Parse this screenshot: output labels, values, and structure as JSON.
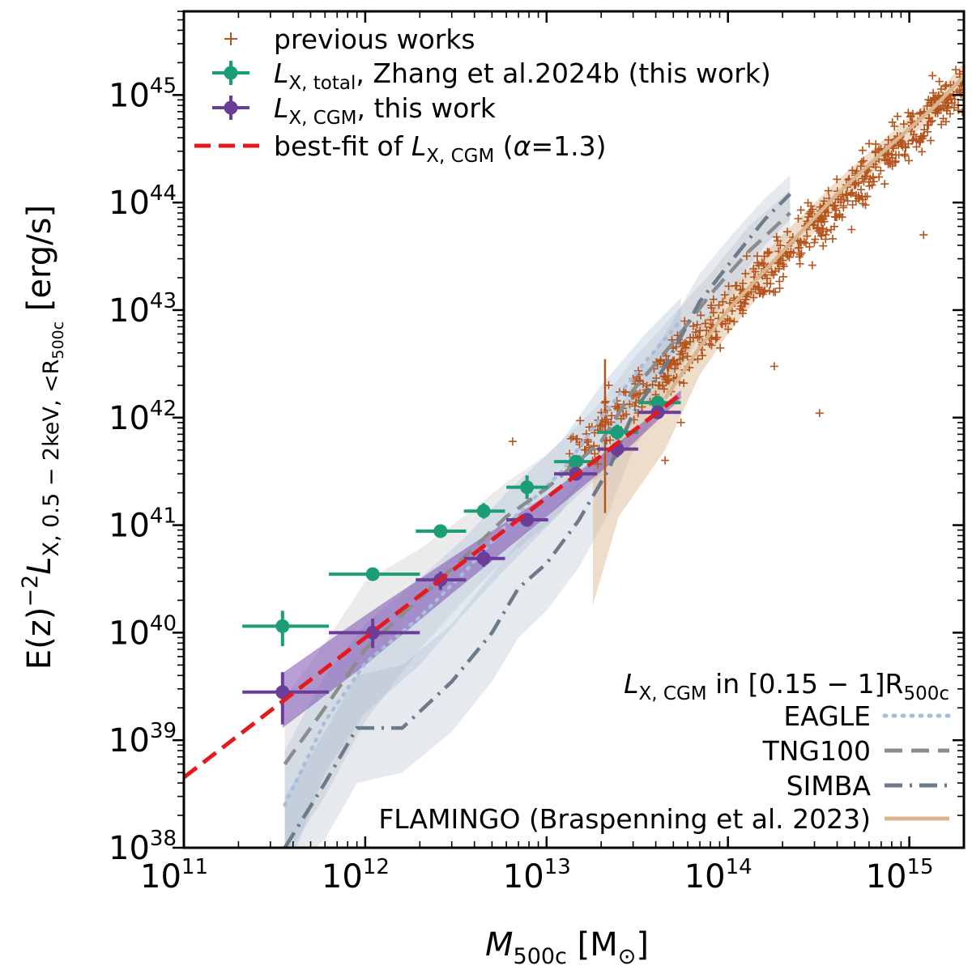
{
  "chart_data": {
    "type": "scatter",
    "x_scale": "log",
    "y_scale": "log",
    "xlim": [
      100000000000.0,
      2000000000000000.0
    ],
    "ylim": [
      1e+38,
      6e+45
    ],
    "xlabel": "M_500c [M_⊙]",
    "ylabel": "E(z)^-2 L_X, 0.5-2keV, <R_500c [erg/s]",
    "x_ticks": [
      {
        "base": "10",
        "exp": "11",
        "value": 100000000000.0
      },
      {
        "base": "10",
        "exp": "12",
        "value": 1000000000000.0
      },
      {
        "base": "10",
        "exp": "13",
        "value": 10000000000000.0
      },
      {
        "base": "10",
        "exp": "14",
        "value": 100000000000000.0
      },
      {
        "base": "10",
        "exp": "15",
        "value": 1000000000000000.0
      }
    ],
    "y_ticks": [
      {
        "base": "10",
        "exp": "38",
        "value": 1e+38
      },
      {
        "base": "10",
        "exp": "39",
        "value": 1e+39
      },
      {
        "base": "10",
        "exp": "40",
        "value": 1e+40
      },
      {
        "base": "10",
        "exp": "41",
        "value": 1e+41
      },
      {
        "base": "10",
        "exp": "42",
        "value": 1e+42
      },
      {
        "base": "10",
        "exp": "43",
        "value": 1e+43
      },
      {
        "base": "10",
        "exp": "44",
        "value": 1e+44
      },
      {
        "base": "10",
        "exp": "45",
        "value": 1e+45
      }
    ],
    "legend_top_left": [
      "previous works",
      "L_X,total, Zhang et al.2024b (this work)",
      "L_X,CGM, this work",
      "best-fit of L_X,CGM (α=1.3)"
    ],
    "legend_bottom_right": [
      "EAGLE",
      "TNG100",
      "SIMBA",
      "FLAMINGO (Braspenning et al. 2023)"
    ],
    "legend_bottom_right_title": "L_X,CGM in [0.15 − 1]R_500c",
    "series": [
      {
        "name": "L_X,total, Zhang et al.2024b (this work)",
        "color": "#1b9e77",
        "points": [
          {
            "x": 350000000000.0,
            "y": 1.15e+40,
            "xlo": 210000000000.0,
            "xhi": 630000000000.0,
            "ylo": 7.5e+39,
            "yhi": 1.6e+40
          },
          {
            "x": 1100000000000.0,
            "y": 3.5e+40,
            "xlo": 630000000000.0,
            "xhi": 2000000000000.0,
            "ylo": 3.1e+40,
            "yhi": 3.9e+40
          },
          {
            "x": 2600000000000.0,
            "y": 8.8e+40,
            "xlo": 1900000000000.0,
            "xhi": 3600000000000.0,
            "ylo": 8e+40,
            "yhi": 9.6e+40
          },
          {
            "x": 4500000000000.0,
            "y": 1.35e+41,
            "xlo": 3500000000000.0,
            "xhi": 5900000000000.0,
            "ylo": 1.15e+41,
            "yhi": 1.6e+41
          },
          {
            "x": 7800000000000.0,
            "y": 2.25e+41,
            "xlo": 6000000000000.0,
            "xhi": 10200000000000.0,
            "ylo": 1.75e+41,
            "yhi": 2.9e+41
          },
          {
            "x": 14500000000000.0,
            "y": 3.9e+41,
            "xlo": 11000000000000.0,
            "xhi": 19000000000000.0,
            "ylo": 3.6e+41,
            "yhi": 4.2e+41
          },
          {
            "x": 24500000000000.0,
            "y": 7.3e+41,
            "xlo": 19000000000000.0,
            "xhi": 32000000000000.0,
            "ylo": 6.2e+41,
            "yhi": 8.6e+41
          },
          {
            "x": 41000000000000.0,
            "y": 1.38e+42,
            "xlo": 32000000000000.0,
            "xhi": 55000000000000.0,
            "ylo": 1.25e+42,
            "yhi": 1.5e+42
          }
        ]
      },
      {
        "name": "L_X,CGM, this work",
        "color": "#6a3d9a",
        "points": [
          {
            "x": 350000000000.0,
            "y": 2.8e+39,
            "xlo": 210000000000.0,
            "xhi": 630000000000.0,
            "ylo": 1.4e+39,
            "yhi": 4.3e+39
          },
          {
            "x": 1100000000000.0,
            "y": 1e+40,
            "xlo": 630000000000.0,
            "xhi": 2000000000000.0,
            "ylo": 7.2e+39,
            "yhi": 1.35e+40
          },
          {
            "x": 2600000000000.0,
            "y": 3.1e+40,
            "xlo": 1900000000000.0,
            "xhi": 3600000000000.0,
            "ylo": 2.5e+40,
            "yhi": 3.7e+40
          },
          {
            "x": 4500000000000.0,
            "y": 4.9e+40,
            "xlo": 3500000000000.0,
            "xhi": 5900000000000.0,
            "ylo": 4.1e+40,
            "yhi": 5.9e+40
          },
          {
            "x": 7800000000000.0,
            "y": 1.12e+41,
            "xlo": 6000000000000.0,
            "xhi": 10200000000000.0,
            "ylo": 9.8e+40,
            "yhi": 1.28e+41
          },
          {
            "x": 14500000000000.0,
            "y": 3e+41,
            "xlo": 11000000000000.0,
            "xhi": 19000000000000.0,
            "ylo": 2.75e+41,
            "yhi": 3.25e+41
          },
          {
            "x": 24500000000000.0,
            "y": 5.1e+41,
            "xlo": 19000000000000.0,
            "xhi": 32000000000000.0,
            "ylo": 4.3e+41,
            "yhi": 6e+41
          },
          {
            "x": 41000000000000.0,
            "y": 1.12e+42,
            "xlo": 32000000000000.0,
            "xhi": 55000000000000.0,
            "ylo": 1e+42,
            "yhi": 1.25e+42
          }
        ]
      },
      {
        "name": "best-fit of L_X,CGM (α=1.3)",
        "color": "#e41a1c",
        "line": [
          [
            100000000000.0,
            4.5e+38
          ],
          [
            55000000000000.0,
            1.65e+42
          ]
        ],
        "band": [
          [
            350000000000.0,
            1.3e+39,
            4.2e+39
          ],
          [
            1000000000000.0,
            5e+39,
            1.45e+40
          ],
          [
            3000000000000.0,
            2.3e+40,
            5e+40
          ],
          [
            10000000000000.0,
            1.2e+41,
            1.9e+41
          ],
          [
            25000000000000.0,
            4.3e+41,
            5.9e+41
          ],
          [
            55000000000000.0,
            1.5e+42,
            1.8e+42
          ]
        ]
      },
      {
        "name": "EAGLE",
        "color": "#a6bddb",
        "line": [
          [
            360000000000.0,
            2.5e+38
          ],
          [
            600000000000.0,
            1.5e+39
          ],
          [
            1000000000000.0,
            5.2e+39
          ],
          [
            2000000000000.0,
            1.4e+40
          ],
          [
            3500000000000.0,
            3.6e+40
          ],
          [
            6000000000000.0,
            1e+41
          ],
          [
            12000000000000.0,
            3.1e+41
          ],
          [
            20000000000000.0,
            1e+42
          ],
          [
            35000000000000.0,
            3.3e+42
          ],
          [
            55000000000000.0,
            8e+42
          ]
        ],
        "band": [
          [
            360000000000.0,
            5e+37,
            8e+38
          ],
          [
            600000000000.0,
            5e+38,
            4e+39
          ],
          [
            1000000000000.0,
            1.8e+39,
            1.2e+40
          ],
          [
            2000000000000.0,
            5e+39,
            3.2e+40
          ],
          [
            3500000000000.0,
            1.5e+40,
            7.5e+40
          ],
          [
            6000000000000.0,
            4e+40,
            2e+41
          ],
          [
            12000000000000.0,
            1.3e+41,
            6e+41
          ],
          [
            20000000000000.0,
            5e+41,
            2e+42
          ],
          [
            35000000000000.0,
            1.8e+42,
            6e+42
          ],
          [
            55000000000000.0,
            5e+42,
            1.3e+43
          ]
        ]
      },
      {
        "name": "TNG100",
        "color": "#8c8c8c",
        "line": [
          [
            360000000000.0,
            6e+38
          ],
          [
            600000000000.0,
            2e+39
          ],
          [
            1000000000000.0,
            7e+39
          ],
          [
            2000000000000.0,
            2.1e+40
          ],
          [
            3500000000000.0,
            5e+40
          ],
          [
            6000000000000.0,
            1.2e+41
          ],
          [
            10000000000000.0,
            2.2e+41
          ],
          [
            20000000000000.0,
            6e+41
          ],
          [
            30000000000000.0,
            1.8e+42
          ],
          [
            50000000000000.0,
            5e+42
          ],
          [
            80000000000000.0,
            1.4e+43
          ],
          [
            130000000000000.0,
            3.5e+43
          ],
          [
            220000000000000.0,
            8e+43
          ]
        ],
        "band": [
          [
            360000000000.0,
            8e+37,
            2.5e+39
          ],
          [
            600000000000.0,
            3e+38,
            8e+39
          ],
          [
            1000000000000.0,
            1.5e+39,
            3e+40
          ],
          [
            2000000000000.0,
            7e+39,
            6e+40
          ],
          [
            3500000000000.0,
            2e+40,
            1.2e+41
          ],
          [
            6000000000000.0,
            5e+40,
            2.5e+41
          ],
          [
            10000000000000.0,
            1e+41,
            4.5e+41
          ],
          [
            20000000000000.0,
            3e+41,
            1.4e+42
          ],
          [
            30000000000000.0,
            9e+41,
            3.5e+42
          ],
          [
            50000000000000.0,
            2.5e+42,
            9e+42
          ],
          [
            80000000000000.0,
            8e+42,
            2.2e+43
          ],
          [
            130000000000000.0,
            2e+43,
            6e+43
          ],
          [
            220000000000000.0,
            5e+43,
            1.3e+44
          ]
        ]
      },
      {
        "name": "SIMBA",
        "color": "#6b7b8c",
        "line": [
          [
            360000000000.0,
            1e+38
          ],
          [
            600000000000.0,
            4e+38
          ],
          [
            900000000000.0,
            1.3e+39
          ],
          [
            1600000000000.0,
            1.3e+39
          ],
          [
            3000000000000.0,
            3.5e+39
          ],
          [
            5000000000000.0,
            1e+40
          ],
          [
            7000000000000.0,
            2.6e+40
          ],
          [
            10000000000000.0,
            4.4e+40
          ],
          [
            15000000000000.0,
            1.1e+41
          ],
          [
            22000000000000.0,
            3.3e+41
          ],
          [
            30000000000000.0,
            1.1e+42
          ],
          [
            45000000000000.0,
            3e+42
          ],
          [
            70000000000000.0,
            1.2e+43
          ],
          [
            110000000000000.0,
            3.2e+43
          ],
          [
            160000000000000.0,
            7e+43
          ],
          [
            220000000000000.0,
            1.2e+44
          ]
        ],
        "band": [
          [
            360000000000.0,
            5e+37,
            3e+38
          ],
          [
            600000000000.0,
            1.2e+38,
            1.2e+39
          ],
          [
            900000000000.0,
            4e+38,
            4e+39
          ],
          [
            1600000000000.0,
            5e+38,
            5e+39
          ],
          [
            3000000000000.0,
            1.2e+39,
            1.2e+40
          ],
          [
            5000000000000.0,
            3.5e+39,
            3.5e+40
          ],
          [
            7000000000000.0,
            9e+39,
            7e+40
          ],
          [
            10000000000000.0,
            1.6e+40,
            1.2e+41
          ],
          [
            15000000000000.0,
            4e+40,
            2.5e+41
          ],
          [
            22000000000000.0,
            1.3e+41,
            7e+41
          ],
          [
            30000000000000.0,
            5e+41,
            2.2e+42
          ],
          [
            45000000000000.0,
            1.4e+42,
            6e+42
          ],
          [
            70000000000000.0,
            6e+42,
            2.2e+43
          ],
          [
            110000000000000.0,
            1.7e+43,
            5.5e+43
          ],
          [
            160000000000000.0,
            4e+43,
            1.1e+44
          ],
          [
            220000000000000.0,
            7e+43,
            1.8e+44
          ]
        ]
      },
      {
        "name": "FLAMINGO (Braspenning et al. 2023)",
        "color": "#d9b48c",
        "line": [
          [
            45000000000000.0,
            1.5e+42
          ],
          [
            70000000000000.0,
            4.5e+42
          ],
          [
            100000000000000.0,
            1e+43
          ],
          [
            200000000000000.0,
            3.5e+43
          ],
          [
            400000000000000.0,
            1.2e+44
          ],
          [
            800000000000000.0,
            3.5e+44
          ],
          [
            1400000000000000.0,
            8e+44
          ],
          [
            2000000000000000.0,
            1.5e+45
          ]
        ],
        "band": [
          [
            18000000000000.0,
            1.8e+40,
            3.5e+41
          ],
          [
            25000000000000.0,
            1.2e+41,
            7e+41
          ],
          [
            45000000000000.0,
            5e+41,
            2.5e+42
          ],
          [
            70000000000000.0,
            2.5e+42,
            7e+42
          ],
          [
            100000000000000.0,
            6e+42,
            1.5e+43
          ],
          [
            200000000000000.0,
            2.5e+43,
            5e+43
          ],
          [
            400000000000000.0,
            9e+43,
            1.6e+44
          ],
          [
            800000000000000.0,
            2.8e+44,
            4.5e+44
          ],
          [
            1400000000000000.0,
            6.5e+44,
            1e+45
          ],
          [
            2000000000000000.0,
            1.2e+45,
            2e+45
          ]
        ]
      },
      {
        "name": "previous works",
        "color": "#b5541c",
        "marker": "+",
        "description": "~600 literature groups/clusters scattered along the relation from ~1e13 to 2e15 M_sun"
      }
    ]
  }
}
